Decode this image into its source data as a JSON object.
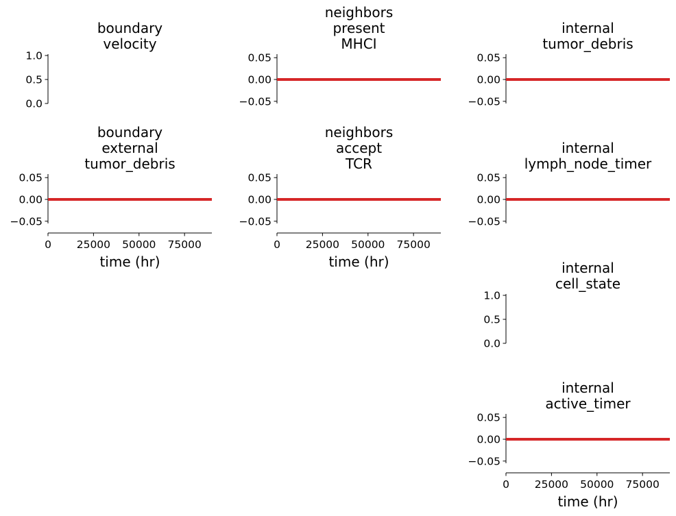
{
  "chart_data": [
    {
      "type": "line",
      "title": [
        "boundary",
        "velocity"
      ],
      "ylim": [
        0,
        1
      ],
      "yticks": [
        0,
        0.5,
        1
      ],
      "ytick_labels": [
        "0.0",
        "0.5",
        "1.0"
      ],
      "series": []
    },
    {
      "type": "line",
      "title": [
        "neighbors",
        "present",
        "MHCI"
      ],
      "ylim": [
        -0.055,
        0.055
      ],
      "yticks": [
        -0.05,
        0,
        0.05
      ],
      "ytick_labels": [
        "−0.05",
        "0.00",
        "0.05"
      ],
      "series": [
        {
          "color": "#d62728",
          "x": [
            0,
            90000
          ],
          "y": [
            0,
            0
          ]
        }
      ]
    },
    {
      "type": "line",
      "title": [
        "internal",
        "tumor_debris"
      ],
      "ylim": [
        -0.055,
        0.055
      ],
      "yticks": [
        -0.05,
        0,
        0.05
      ],
      "ytick_labels": [
        "−0.05",
        "0.00",
        "0.05"
      ],
      "series": [
        {
          "color": "#d62728",
          "x": [
            0,
            90000
          ],
          "y": [
            0,
            0
          ]
        }
      ]
    },
    {
      "type": "line",
      "title": [
        "boundary",
        "external",
        "tumor_debris"
      ],
      "ylim": [
        -0.055,
        0.055
      ],
      "yticks": [
        -0.05,
        0,
        0.05
      ],
      "ytick_labels": [
        "−0.05",
        "0.00",
        "0.05"
      ],
      "xlim": [
        0,
        90000
      ],
      "xticks": [
        0,
        25000,
        50000,
        75000
      ],
      "xtick_labels": [
        "0",
        "25000",
        "50000",
        "75000"
      ],
      "xlabel": "time (hr)",
      "series": [
        {
          "color": "#d62728",
          "x": [
            0,
            90000
          ],
          "y": [
            0,
            0
          ]
        }
      ]
    },
    {
      "type": "line",
      "title": [
        "neighbors",
        "accept",
        "TCR"
      ],
      "ylim": [
        -0.055,
        0.055
      ],
      "yticks": [
        -0.05,
        0,
        0.05
      ],
      "ytick_labels": [
        "−0.05",
        "0.00",
        "0.05"
      ],
      "xlim": [
        0,
        90000
      ],
      "xticks": [
        0,
        25000,
        50000,
        75000
      ],
      "xtick_labels": [
        "0",
        "25000",
        "50000",
        "75000"
      ],
      "xlabel": "time (hr)",
      "series": [
        {
          "color": "#d62728",
          "x": [
            0,
            90000
          ],
          "y": [
            0,
            0
          ]
        }
      ]
    },
    {
      "type": "line",
      "title": [
        "internal",
        "lymph_node_timer"
      ],
      "ylim": [
        -0.055,
        0.055
      ],
      "yticks": [
        -0.05,
        0,
        0.05
      ],
      "ytick_labels": [
        "−0.05",
        "0.00",
        "0.05"
      ],
      "series": [
        {
          "color": "#d62728",
          "x": [
            0,
            90000
          ],
          "y": [
            0,
            0
          ]
        }
      ]
    },
    {
      "type": "line",
      "title": [
        "internal",
        "cell_state"
      ],
      "ylim": [
        0,
        1
      ],
      "yticks": [
        0,
        0.5,
        1
      ],
      "ytick_labels": [
        "0.0",
        "0.5",
        "1.0"
      ],
      "series": []
    },
    {
      "type": "line",
      "title": [
        "internal",
        "active_timer"
      ],
      "ylim": [
        -0.055,
        0.055
      ],
      "yticks": [
        -0.05,
        0,
        0.05
      ],
      "ytick_labels": [
        "−0.05",
        "0.00",
        "0.05"
      ],
      "xlim": [
        0,
        90000
      ],
      "xticks": [
        0,
        25000,
        50000,
        75000
      ],
      "xtick_labels": [
        "0",
        "25000",
        "50000",
        "75000"
      ],
      "xlabel": "time (hr)",
      "series": [
        {
          "color": "#d62728",
          "x": [
            0,
            90000
          ],
          "y": [
            0,
            0
          ]
        }
      ]
    }
  ]
}
